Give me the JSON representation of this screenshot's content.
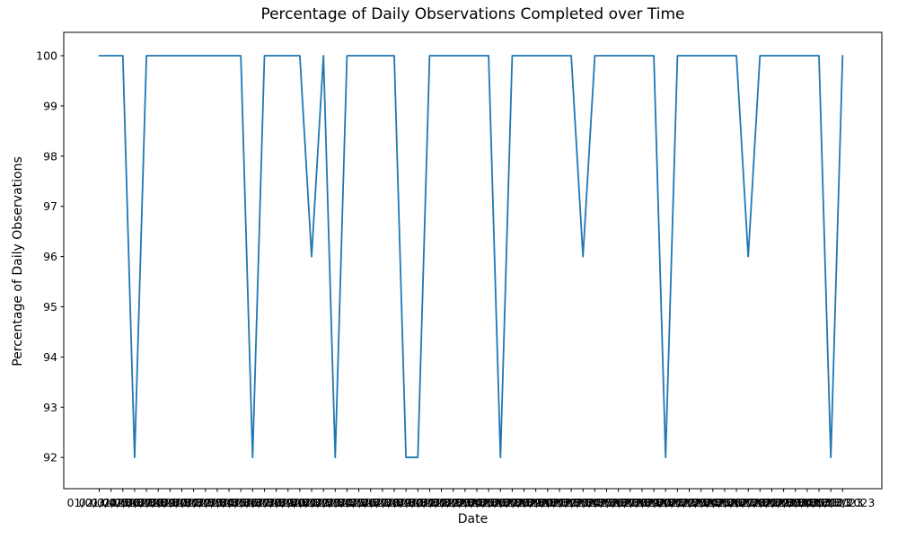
{
  "figure": {
    "background_color": "#ffffff",
    "spine_color": "#000000",
    "text_color": "#000000"
  },
  "chart_data": {
    "type": "line",
    "title": "Percentage of Daily Observations Completed over Time",
    "xlabel": "Date",
    "ylabel": "Percentage of Daily Observations",
    "line_color": "#1f77b4",
    "grid": false,
    "legend": null,
    "ylim": [
      91.4,
      100.5
    ],
    "yticks": [
      92,
      93,
      94,
      95,
      96,
      97,
      98,
      99,
      100
    ],
    "x": [
      "01/01/2023",
      "02/01/2023",
      "03/01/2023",
      "04/01/2023",
      "05/01/2023",
      "06/01/2023",
      "07/01/2023",
      "08/01/2023",
      "09/01/2023",
      "10/01/2023",
      "11/01/2023",
      "12/01/2023",
      "13/01/2023",
      "14/01/2023",
      "15/01/2023",
      "16/01/2023",
      "17/01/2023",
      "18/01/2023",
      "19/01/2023",
      "20/01/2023",
      "21/01/2023",
      "22/01/2023",
      "23/01/2023",
      "24/01/2023",
      "25/01/2023",
      "26/01/2023",
      "27/01/2023",
      "28/01/2023",
      "29/01/2023",
      "30/01/2023",
      "31/01/2023",
      "01/02/2023",
      "02/02/2023",
      "03/02/2023",
      "04/02/2023",
      "05/02/2023",
      "06/02/2023",
      "07/02/2023",
      "08/02/2023",
      "09/02/2023",
      "10/02/2023",
      "11/02/2023",
      "12/02/2023",
      "13/02/2023",
      "14/02/2023",
      "15/02/2023",
      "16/02/2023",
      "17/02/2023",
      "18/02/2023",
      "19/02/2023",
      "20/02/2023",
      "21/02/2023",
      "22/02/2023",
      "23/02/2023",
      "24/02/2023",
      "25/02/2023",
      "26/02/2023",
      "27/02/2023",
      "28/02/2023",
      "01/03/2023",
      "02/03/2023",
      "03/03/2023",
      "04/03/2023",
      "05/03/2023"
    ],
    "values": [
      100,
      100,
      100,
      92,
      100,
      100,
      100,
      100,
      100,
      100,
      100,
      100,
      100,
      92,
      100,
      100,
      100,
      100,
      96,
      100,
      92,
      100,
      100,
      100,
      100,
      100,
      92,
      92,
      100,
      100,
      100,
      100,
      100,
      100,
      92,
      100,
      100,
      100,
      100,
      100,
      100,
      96,
      100,
      100,
      100,
      100,
      100,
      100,
      92,
      100,
      100,
      100,
      100,
      100,
      100,
      96,
      100,
      100,
      100,
      100,
      100,
      100,
      92,
      100
    ]
  }
}
